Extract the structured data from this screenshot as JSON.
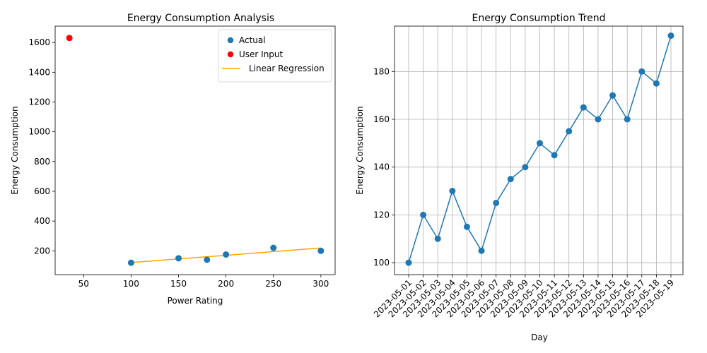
{
  "chart_data": [
    {
      "type": "scatter",
      "title": "Energy Consumption Analysis",
      "xlabel": "Power Rating",
      "ylabel": "Energy Consumption",
      "xlim": [
        20,
        315
      ],
      "ylim": [
        40,
        1710
      ],
      "xticks": [
        50,
        100,
        150,
        200,
        250,
        300
      ],
      "yticks": [
        200,
        400,
        600,
        800,
        1000,
        1200,
        1400,
        1600
      ],
      "grid": false,
      "legend_position": "top-right",
      "series": [
        {
          "name": "Actual",
          "kind": "scatter",
          "color": "#1f77b4",
          "points": [
            [
              100,
              120
            ],
            [
              150,
              150
            ],
            [
              180,
              140
            ],
            [
              200,
              175
            ],
            [
              250,
              220
            ],
            [
              300,
              200
            ]
          ]
        },
        {
          "name": "User Input",
          "kind": "scatter",
          "color": "#ff0000",
          "points": [
            [
              35,
              1630
            ]
          ]
        },
        {
          "name": "Linear Regression",
          "kind": "line",
          "color": "#ffa500",
          "points": [
            [
              100,
              121
            ],
            [
              150,
              145.5
            ],
            [
              180,
              160.2
            ],
            [
              200,
              170
            ],
            [
              250,
              194.5
            ],
            [
              300,
              219
            ]
          ]
        }
      ]
    },
    {
      "type": "line",
      "title": "Energy Consumption Trend",
      "xlabel": "Day",
      "ylabel": "Energy Consumption",
      "ylim": [
        95,
        199
      ],
      "yticks": [
        100,
        120,
        140,
        160,
        180
      ],
      "grid": true,
      "categories": [
        "2023-05-01",
        "2023-05-02",
        "2023-05-03",
        "2023-05-04",
        "2023-05-05",
        "2023-05-06",
        "2023-05-07",
        "2023-05-08",
        "2023-05-09",
        "2023-05-10",
        "2023-05-11",
        "2023-05-12",
        "2023-05-13",
        "2023-05-14",
        "2023-05-15",
        "2023-05-16",
        "2023-05-17",
        "2023-05-18",
        "2023-05-19"
      ],
      "series": [
        {
          "color": "#1f77b4",
          "values": [
            100,
            120,
            110,
            130,
            115,
            105,
            125,
            135,
            140,
            150,
            145,
            155,
            165,
            160,
            170,
            160,
            180,
            175,
            195
          ]
        }
      ]
    }
  ]
}
